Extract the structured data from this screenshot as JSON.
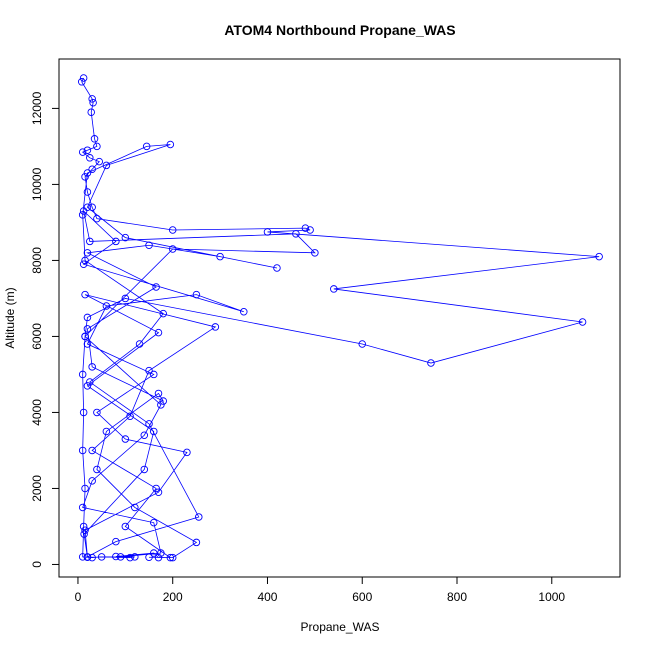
{
  "chart_data": {
    "type": "line",
    "title": "ATOM4 Northbound Propane_WAS",
    "x_label": "Propane_WAS",
    "y_label": "Altitude (m)",
    "color": "#0000ff",
    "markers": true,
    "xlim": [
      -40,
      1144
    ],
    "ylim": [
      -330,
      13300
    ],
    "xticks": [
      0,
      200,
      400,
      600,
      800,
      1000
    ],
    "yticks": [
      0,
      2000,
      4000,
      6000,
      8000,
      10000,
      12000
    ],
    "x": [
      12,
      8,
      30,
      32,
      28,
      35,
      40,
      20,
      10,
      25,
      45,
      30,
      15,
      20,
      30,
      40,
      200,
      480,
      490,
      400,
      1100,
      540,
      1065,
      745,
      600,
      100,
      20,
      15,
      10,
      12,
      10,
      15,
      12,
      10,
      30,
      50,
      110,
      120,
      80,
      160,
      170,
      200,
      250,
      120,
      40,
      60,
      170,
      180,
      30,
      20,
      165,
      20,
      150,
      300,
      420,
      100,
      20,
      60,
      195,
      145,
      20,
      10,
      15,
      180,
      130,
      25,
      150,
      255,
      80,
      20,
      15,
      170,
      230,
      100,
      40,
      160,
      20,
      60,
      250,
      350,
      12,
      80,
      12,
      25,
      460,
      500,
      200,
      15,
      175,
      140,
      30,
      10,
      160,
      175,
      90,
      20,
      13,
      140,
      160,
      20,
      170,
      15,
      290,
      150,
      110,
      30,
      165,
      100,
      195,
      150
    ],
    "values": [
      12800,
      12700,
      12250,
      12150,
      11900,
      11200,
      11000,
      10900,
      10850,
      10700,
      10600,
      10400,
      10200,
      9800,
      9400,
      9100,
      8800,
      8850,
      8800,
      8750,
      8100,
      7250,
      6380,
      5300,
      5800,
      7000,
      6500,
      6000,
      5000,
      4000,
      3000,
      2000,
      1000,
      200,
      180,
      200,
      180,
      200,
      210,
      300,
      180,
      180,
      580,
      1500,
      2500,
      3500,
      4500,
      4300,
      5200,
      6200,
      7300,
      8200,
      8400,
      8100,
      7800,
      8600,
      9400,
      10500,
      11050,
      11000,
      10300,
      9200,
      8000,
      6600,
      5800,
      4800,
      3700,
      1250,
      600,
      200,
      900,
      1900,
      2950,
      3300,
      4000,
      5000,
      5800,
      6800,
      7100,
      6650,
      7900,
      8500,
      9300,
      8500,
      8700,
      8200,
      8300,
      6000,
      4200,
      3400,
      2200,
      1500,
      1100,
      300,
      200,
      190,
      800,
      2500,
      3500,
      4700,
      6100,
      7100,
      6250,
      5100,
      3900,
      3000,
      2000,
      1000,
      180,
      190
    ]
  }
}
